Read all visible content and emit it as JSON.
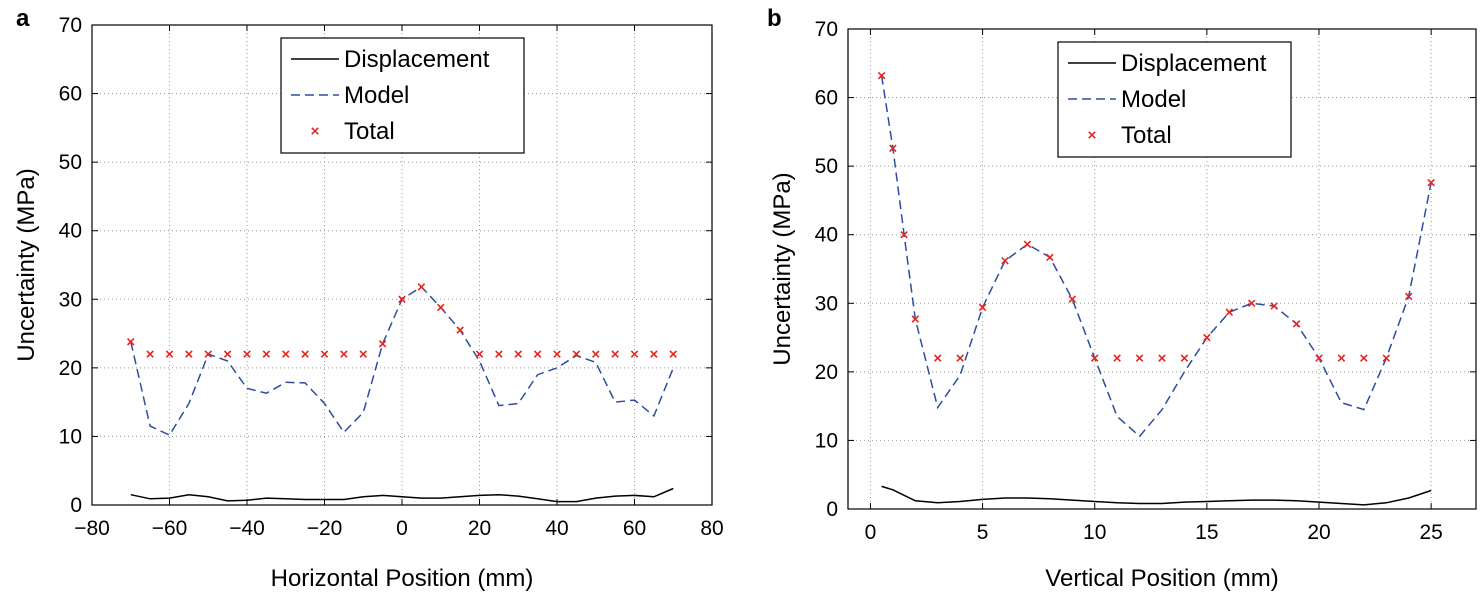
{
  "chart_data": [
    {
      "panel_label": "a",
      "type": "line",
      "xlabel": "Horizontal Position (mm)",
      "ylabel": "Uncertainty (MPa)",
      "xlim": [
        -80,
        80
      ],
      "ylim": [
        0,
        70
      ],
      "xticks": [
        -80,
        -60,
        -40,
        -20,
        0,
        20,
        40,
        60,
        80
      ],
      "xtick_labels": [
        "−80",
        "−60",
        "−40",
        "−20",
        "0",
        "20",
        "40",
        "60",
        "80"
      ],
      "yticks": [
        0,
        10,
        20,
        30,
        40,
        50,
        60,
        70
      ],
      "ytick_labels": [
        "0",
        "10",
        "20",
        "30",
        "40",
        "50",
        "60",
        "70"
      ],
      "grid": true,
      "legend_position": "top-center",
      "x": [
        -70,
        -65,
        -60,
        -55,
        -50,
        -45,
        -40,
        -35,
        -30,
        -25,
        -20,
        -15,
        -10,
        -5,
        0,
        5,
        10,
        15,
        20,
        25,
        30,
        35,
        40,
        45,
        50,
        55,
        60,
        65,
        70
      ],
      "series": [
        {
          "name": "Displacement",
          "style": "solid",
          "color": "#000000",
          "values": [
            1.5,
            0.9,
            1.0,
            1.5,
            1.2,
            0.6,
            0.7,
            1.0,
            0.9,
            0.8,
            0.8,
            0.8,
            1.2,
            1.4,
            1.2,
            1.0,
            1.0,
            1.2,
            1.4,
            1.5,
            1.3,
            0.9,
            0.5,
            0.5,
            1.0,
            1.3,
            1.4,
            1.2,
            2.4
          ]
        },
        {
          "name": "Model",
          "style": "dashed",
          "color": "#2c4da0",
          "values": [
            23.8,
            11.5,
            10.2,
            14.8,
            22.0,
            21.0,
            17.0,
            16.3,
            17.9,
            17.8,
            14.8,
            10.6,
            13.5,
            23.5,
            30.0,
            31.8,
            28.8,
            25.5,
            21.0,
            14.5,
            14.8,
            19.0,
            20.0,
            21.8,
            20.8,
            15.0,
            15.3,
            13.0,
            20.0
          ]
        },
        {
          "name": "Total",
          "style": "markers",
          "color": "#e8231e",
          "values": [
            23.8,
            22.0,
            22.0,
            22.0,
            22.0,
            22.0,
            22.0,
            22.0,
            22.0,
            22.0,
            22.0,
            22.0,
            22.0,
            23.5,
            30.0,
            31.8,
            28.8,
            25.5,
            22.0,
            22.0,
            22.0,
            22.0,
            22.0,
            22.0,
            22.0,
            22.0,
            22.0,
            22.0,
            22.0
          ]
        }
      ]
    },
    {
      "panel_label": "b",
      "type": "line",
      "xlabel": "Vertical Position (mm)",
      "ylabel": "Uncertainty (MPa)",
      "xlim": [
        -1,
        27
      ],
      "ylim": [
        0,
        70
      ],
      "xticks": [
        0,
        5,
        10,
        15,
        20,
        25
      ],
      "xtick_labels": [
        "0",
        "5",
        "10",
        "15",
        "20",
        "25"
      ],
      "yticks": [
        0,
        10,
        20,
        30,
        40,
        50,
        60,
        70
      ],
      "ytick_labels": [
        "0",
        "10",
        "20",
        "30",
        "40",
        "50",
        "60",
        "70"
      ],
      "grid": true,
      "legend_position": "top-center",
      "x": [
        0.5,
        1,
        1.5,
        2,
        3,
        4,
        5,
        6,
        7,
        8,
        9,
        10,
        11,
        12,
        13,
        14,
        15,
        16,
        17,
        18,
        19,
        20,
        21,
        22,
        23,
        24,
        25
      ],
      "series": [
        {
          "name": "Displacement",
          "style": "solid",
          "color": "#000000",
          "values": [
            3.3,
            2.8,
            2.0,
            1.2,
            0.9,
            1.1,
            1.4,
            1.6,
            1.6,
            1.5,
            1.3,
            1.1,
            0.9,
            0.8,
            0.8,
            1.0,
            1.1,
            1.2,
            1.3,
            1.3,
            1.2,
            1.0,
            0.8,
            0.6,
            0.9,
            1.6,
            2.7
          ]
        },
        {
          "name": "Model",
          "style": "dashed",
          "color": "#2c4da0",
          "values": [
            63.2,
            52.6,
            40.0,
            27.7,
            14.8,
            19.5,
            29.4,
            36.2,
            38.6,
            36.7,
            30.6,
            22.0,
            13.5,
            10.6,
            14.5,
            20.0,
            25.0,
            28.7,
            30.0,
            29.6,
            27.0,
            22.0,
            15.5,
            14.5,
            22.0,
            31.0,
            47.6
          ]
        },
        {
          "name": "Total",
          "style": "markers",
          "color": "#e8231e",
          "values": [
            63.2,
            52.6,
            40.0,
            27.7,
            22.0,
            22.0,
            29.4,
            36.2,
            38.6,
            36.7,
            30.6,
            22.0,
            22.0,
            22.0,
            22.0,
            22.0,
            25.0,
            28.7,
            30.0,
            29.6,
            27.0,
            22.0,
            22.0,
            22.0,
            22.0,
            31.0,
            47.6
          ]
        }
      ]
    }
  ]
}
